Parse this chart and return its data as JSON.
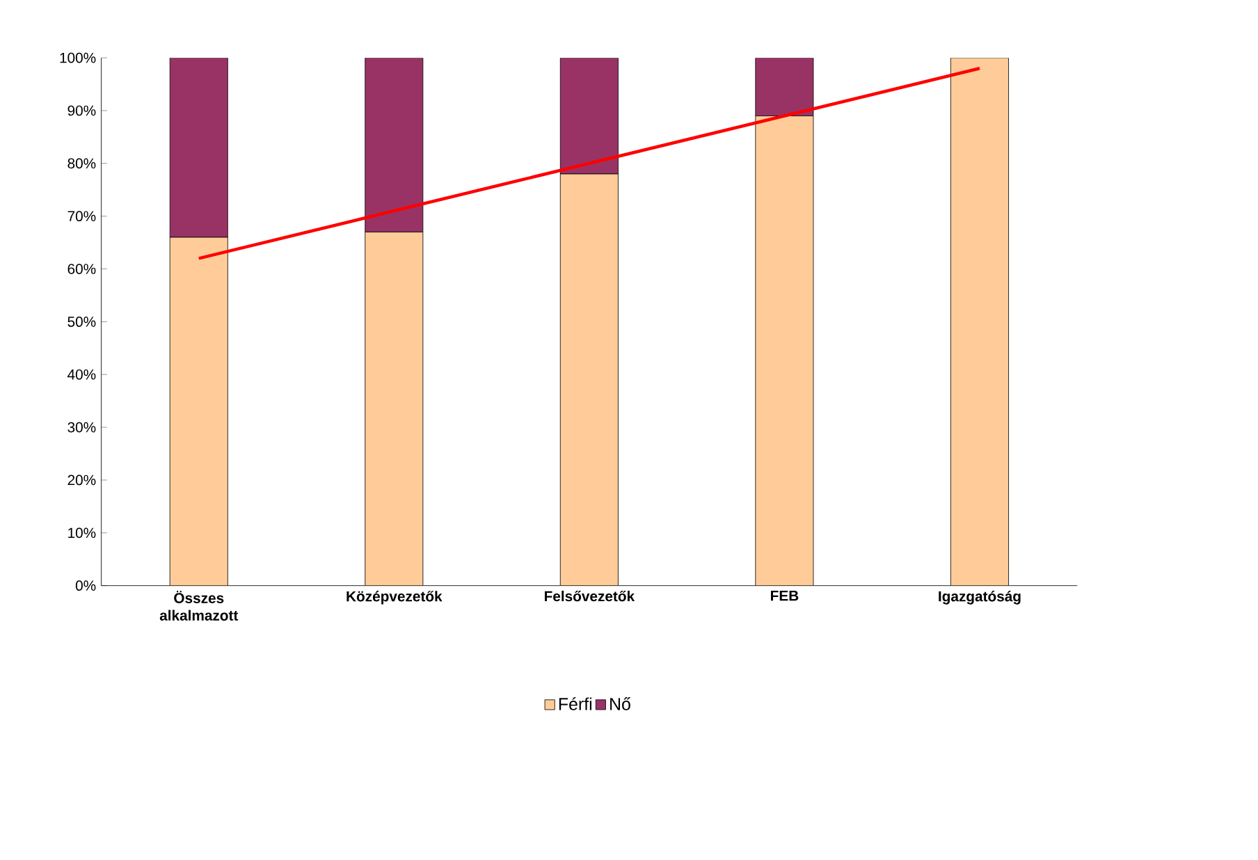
{
  "chart_data": {
    "type": "bar",
    "stacked": true,
    "categories": [
      "Összes alkalmazott",
      "Középvezetők",
      "Felsővezetők",
      "FEB",
      "Igazgatóság"
    ],
    "series": [
      {
        "name": "Férfi",
        "color": "#ffcc99",
        "values": [
          66,
          67,
          78,
          89,
          100
        ]
      },
      {
        "name": "Nő",
        "color": "#993366",
        "values": [
          34,
          33,
          22,
          11,
          0
        ]
      },
      {
        "type": "line",
        "color": "#ff0000",
        "values": [
          62,
          71,
          80,
          89,
          98
        ],
        "line_style": "solid"
      }
    ],
    "ylim": [
      0,
      100
    ],
    "yticks": [
      {
        "value": 0,
        "label": "0%"
      },
      {
        "value": 10,
        "label": "10%"
      },
      {
        "value": 20,
        "label": "20%"
      },
      {
        "value": 30,
        "label": "30%"
      },
      {
        "value": 40,
        "label": "40%"
      },
      {
        "value": 50,
        "label": "50%"
      },
      {
        "value": 60,
        "label": "60%"
      },
      {
        "value": 70,
        "label": "70%"
      },
      {
        "value": 80,
        "label": "80%"
      },
      {
        "value": 90,
        "label": "90%"
      },
      {
        "value": 100,
        "label": "100%"
      }
    ],
    "grid": false,
    "legend": "bottom"
  }
}
